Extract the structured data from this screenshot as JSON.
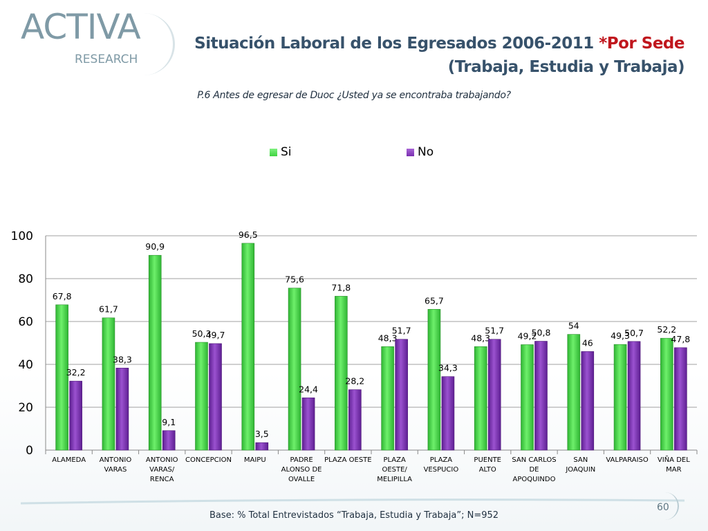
{
  "logo": {
    "main": "ACTIVA",
    "sub": "RESEARCH"
  },
  "title": {
    "line1_main": "Situación Laboral de los Egresados 2006-2011 ",
    "line1_accent": "*Por Sede",
    "line2": "(Trabaja, Estudia y Trabaja)"
  },
  "question": "P.6 Antes de egresar de Duoc ¿Usted ya se encontraba trabajando?",
  "footer": "Base: % Total Entrevistados “Trabaja, Estudia y Trabaja”; N=952",
  "page_number": "60",
  "colors": {
    "si": "#3fd341",
    "no": "#7a2fb0",
    "axis": "#888888",
    "grid": "#a0a0a0"
  },
  "chart_data": {
    "type": "bar",
    "categories": [
      [
        "ALAMEDA"
      ],
      [
        "ANTONIO",
        "VARAS"
      ],
      [
        "ANTONIO",
        "VARAS/",
        "RENCA"
      ],
      [
        "CONCEPCION"
      ],
      [
        "MAIPU"
      ],
      [
        "PADRE",
        "ALONSO DE",
        "OVALLE"
      ],
      [
        "PLAZA OESTE"
      ],
      [
        "PLAZA",
        "OESTE/",
        "MELIPILLA"
      ],
      [
        "PLAZA",
        "VESPUCIO"
      ],
      [
        "PUENTE",
        "ALTO"
      ],
      [
        "SAN CARLOS",
        "DE",
        "APOQUINDO"
      ],
      [
        "SAN",
        "JOAQUIN"
      ],
      [
        "VALPARAISO"
      ],
      [
        "VIÑA DEL",
        "MAR"
      ]
    ],
    "series": [
      {
        "name": "Si",
        "color": "#3fd341",
        "values": [
          67.8,
          61.7,
          90.9,
          50.3,
          96.5,
          75.6,
          71.8,
          48.3,
          65.7,
          48.3,
          49.2,
          54,
          49.3,
          52.2
        ],
        "labels": [
          "67,8",
          "61,7",
          "90,9",
          "50,3",
          "96,5",
          "75,6",
          "71,8",
          "48,3",
          "65,7",
          "48,3",
          "49,2",
          "54",
          "49,3",
          "52,2"
        ]
      },
      {
        "name": "No",
        "color": "#7a2fb0",
        "values": [
          32.2,
          38.3,
          9.1,
          49.7,
          3.5,
          24.4,
          28.2,
          51.7,
          34.3,
          51.7,
          50.8,
          46,
          50.7,
          47.8
        ],
        "labels": [
          "32,2",
          "38,3",
          "9,1",
          "49,7",
          "3,5",
          "24,4",
          "28,2",
          "51,7",
          "34,3",
          "51,7",
          "50,8",
          "46",
          "50,7",
          "47,8"
        ]
      }
    ],
    "yticks": [
      "0",
      "20",
      "40",
      "60",
      "80",
      "100"
    ],
    "ylim": [
      0,
      100
    ],
    "grid": true,
    "legend": "top-center"
  }
}
